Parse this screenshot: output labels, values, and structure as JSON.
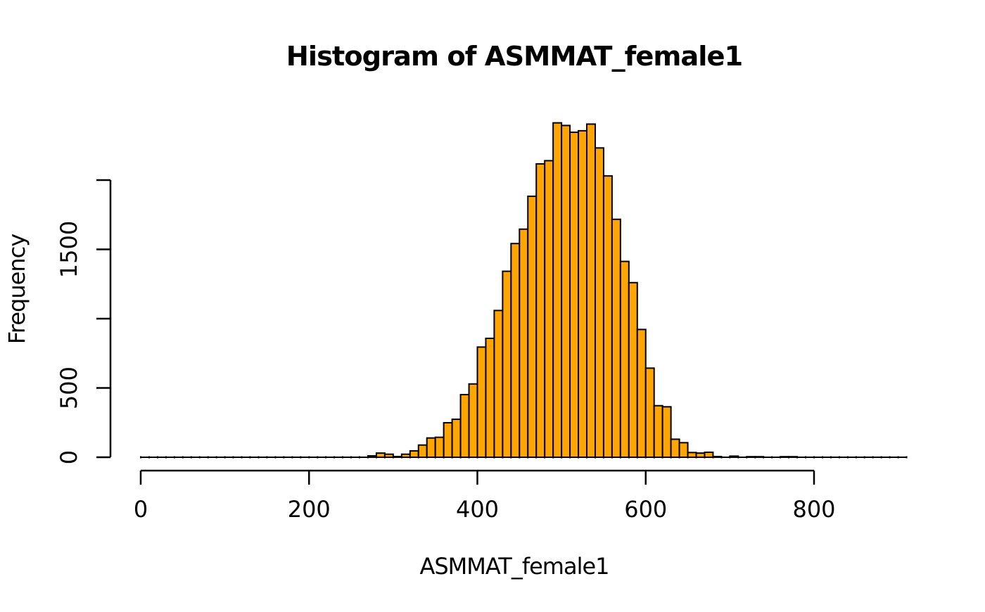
{
  "chart_data": {
    "type": "bar",
    "subtype": "histogram",
    "title": "Histogram of ASMMAT_female1",
    "xlabel": "ASMMAT_female1",
    "ylabel": "Frequency",
    "xlim": [
      0,
      900
    ],
    "ylim": [
      0,
      2400
    ],
    "bin_width": 10,
    "bin_start": 0,
    "counts": [
      0,
      0,
      0,
      0,
      0,
      0,
      0,
      0,
      0,
      0,
      0,
      0,
      0,
      0,
      0,
      0,
      0,
      0,
      0,
      0,
      0,
      0,
      0,
      0,
      0,
      0,
      0,
      10,
      30,
      22,
      5,
      22,
      46,
      88,
      139,
      144,
      249,
      274,
      452,
      529,
      795,
      858,
      1059,
      1342,
      1542,
      1646,
      1883,
      2117,
      2140,
      2413,
      2394,
      2345,
      2356,
      2404,
      2232,
      2030,
      1717,
      1413,
      1260,
      922,
      643,
      372,
      364,
      130,
      105,
      34,
      30,
      36,
      5,
      0,
      8,
      0,
      4,
      4,
      0,
      0,
      4,
      4,
      0,
      0,
      0,
      0,
      0,
      0,
      0,
      0,
      0,
      0,
      0,
      0,
      0
    ],
    "x_ticks": [
      0,
      200,
      400,
      600,
      800
    ],
    "x_tick_labels": [
      "0",
      "200",
      "400",
      "600",
      "800"
    ],
    "y_ticks": [
      0,
      500,
      1000,
      1500,
      2000
    ],
    "y_tick_labels": [
      "0",
      "500",
      "",
      "1500",
      ""
    ],
    "bar_fill_color": "#FFA500",
    "bar_border_color": "#000000",
    "axis_color": "#000000",
    "grid": "off",
    "legend": "none"
  }
}
